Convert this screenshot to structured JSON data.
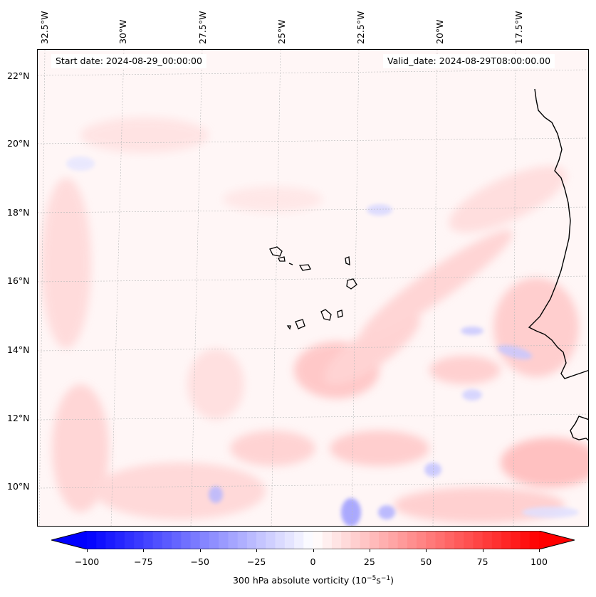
{
  "map": {
    "title_start": "Start date: 2024-08-29_00:00:00",
    "title_valid": "Valid_date: 2024-08-29T08:00:00.00",
    "lon_labels": [
      "32.5°W",
      "30°W",
      "27.5°W",
      "25°W",
      "22.5°W",
      "20°W",
      "17.5°W"
    ],
    "lat_labels": [
      "22°N",
      "20°N",
      "18°N",
      "16°N",
      "14°N",
      "12°N",
      "10°N"
    ],
    "variable": "300 hPa absolute vorticity",
    "units_base": "(10",
    "units_exp1": "−5",
    "units_mid": "s",
    "units_exp2": "−1",
    "units_close": ")"
  },
  "colorbar": {
    "min": -100,
    "max": 100,
    "tick_values": [
      -100,
      -75,
      -50,
      -25,
      0,
      25,
      50,
      75,
      100
    ],
    "tick_labels": [
      "−100",
      "−75",
      "−50",
      "−25",
      "0",
      "25",
      "50",
      "75",
      "100"
    ],
    "low_color": "#0000ff",
    "mid_color": "#ffffff",
    "high_color": "#ff0000",
    "levels": 48
  },
  "colors": {
    "background_field": "#fff8f8",
    "coastline": "#000000",
    "gridline": "#b8b8b8"
  }
}
